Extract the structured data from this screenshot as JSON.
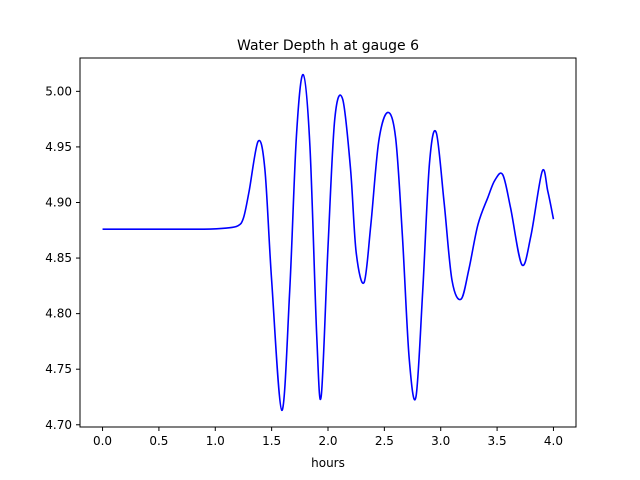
{
  "chart_data": {
    "type": "line",
    "title": "Water Depth h at gauge 6",
    "xlabel": "hours",
    "ylabel": "",
    "xlim": [
      -0.2,
      4.2
    ],
    "ylim": [
      4.698,
      5.03
    ],
    "x_ticks": [
      0.0,
      0.5,
      1.0,
      1.5,
      2.0,
      2.5,
      3.0,
      3.5,
      4.0
    ],
    "x_tick_labels": [
      "0.0",
      "0.5",
      "1.0",
      "1.5",
      "2.0",
      "2.5",
      "3.0",
      "3.5",
      "4.0"
    ],
    "y_ticks": [
      4.7,
      4.75,
      4.8,
      4.85,
      4.9,
      4.95,
      5.0
    ],
    "y_tick_labels": [
      "4.70",
      "4.75",
      "4.80",
      "4.85",
      "4.90",
      "4.95",
      "5.00"
    ],
    "grid": false,
    "legend": "none",
    "line_color": "#0000ff",
    "series": [
      {
        "x": [
          0.0,
          0.5,
          0.9,
          1.1,
          1.2,
          1.25,
          1.3,
          1.38,
          1.44,
          1.5,
          1.59,
          1.66,
          1.72,
          1.78,
          1.84,
          1.9,
          1.94,
          2.0,
          2.06,
          2.13,
          2.2,
          2.25,
          2.32,
          2.38,
          2.45,
          2.53,
          2.6,
          2.66,
          2.72,
          2.78,
          2.84,
          2.9,
          2.96,
          3.03,
          3.1,
          3.18,
          3.25,
          3.33,
          3.42,
          3.48,
          3.55,
          3.62,
          3.72,
          3.8,
          3.9,
          3.95,
          4.0
        ],
        "y": [
          4.876,
          4.876,
          4.876,
          4.877,
          4.879,
          4.886,
          4.91,
          4.955,
          4.93,
          4.83,
          4.713,
          4.82,
          4.96,
          5.015,
          4.95,
          4.78,
          4.726,
          4.86,
          4.975,
          4.993,
          4.93,
          4.855,
          4.828,
          4.88,
          4.955,
          4.981,
          4.958,
          4.87,
          4.76,
          4.725,
          4.82,
          4.935,
          4.963,
          4.9,
          4.83,
          4.813,
          4.84,
          4.88,
          4.905,
          4.92,
          4.925,
          4.895,
          4.844,
          4.87,
          4.928,
          4.91,
          4.885
        ]
      }
    ]
  }
}
